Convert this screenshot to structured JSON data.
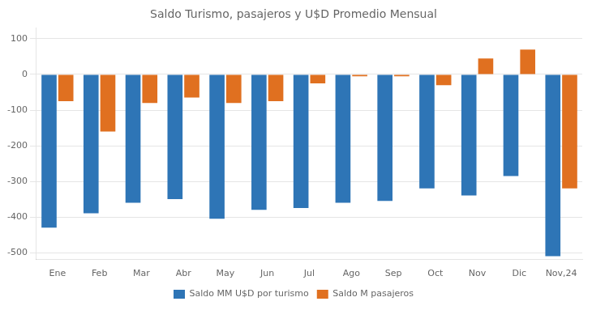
{
  "chart_data": {
    "type": "bar",
    "title": "Saldo Turismo, pasajeros y U$D Promedio Mensual",
    "categories": [
      "Ene",
      "Feb",
      "Mar",
      "Abr",
      "May",
      "Jun",
      "Jul",
      "Ago",
      "Sep",
      "Oct",
      "Nov",
      "Dic",
      "Nov,24"
    ],
    "series": [
      {
        "name": "Saldo MM U$D por turismo",
        "color": "#2E75B6",
        "values": [
          -430,
          -390,
          -360,
          -350,
          -405,
          -380,
          -375,
          -360,
          -355,
          -320,
          -340,
          -285,
          -510
        ]
      },
      {
        "name": "Saldo M pasajeros",
        "color": "#E07020",
        "values": [
          -75,
          -160,
          -80,
          -65,
          -80,
          -75,
          -25,
          -5,
          -5,
          -30,
          45,
          70,
          -320
        ]
      }
    ],
    "ylim": [
      -520,
      130
    ],
    "yticks": [
      -500,
      -400,
      -300,
      -200,
      -100,
      0,
      100
    ],
    "grid": true,
    "legend": "bottom"
  }
}
